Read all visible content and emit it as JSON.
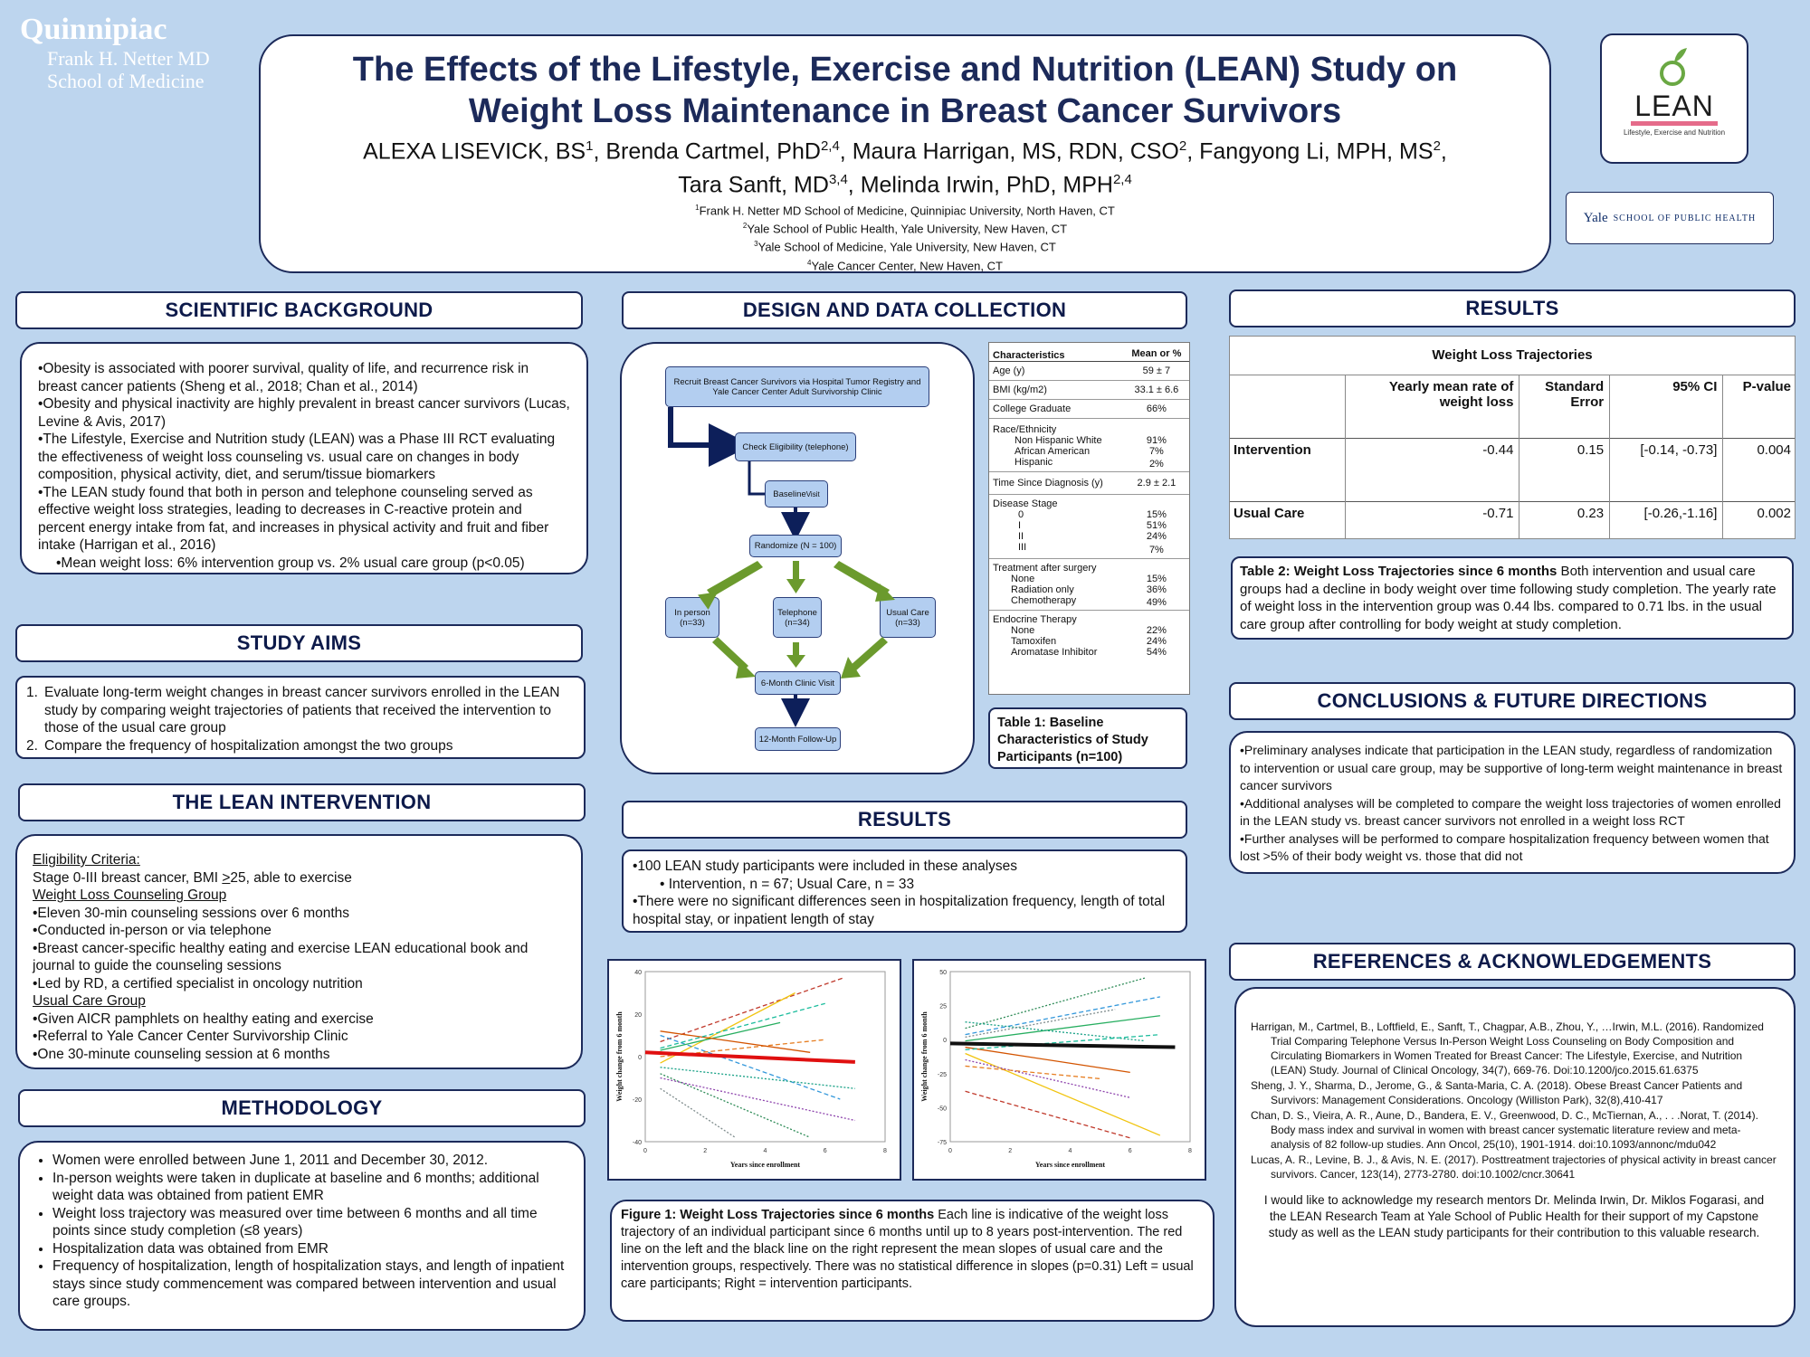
{
  "logos": {
    "quinnipiac": "Quinnipiac",
    "netter_line1": "Frank H. Netter MD",
    "netter_line2": "School of Medicine",
    "lean": "LEAN",
    "lean_tag": "Lifestyle, Exercise and Nutrition",
    "yale_word": "Yale",
    "yale_school": "SCHOOL OF PUBLIC HEALTH"
  },
  "header": {
    "title_line1": "The Effects of the Lifestyle, Exercise and Nutrition (LEAN) Study on",
    "title_line2": "Weight Loss Maintenance in Breast Cancer Survivors",
    "author1": "ALEXA LISEVICK, BS",
    "author1_sup": "1",
    "author2": ", Brenda Cartmel, PhD",
    "author2_sup": "2,4",
    "author3": ", Maura Harrigan, MS, RDN, CSO",
    "author3_sup": "2",
    "author4": ", Fangyong Li, MPH, MS",
    "author4_sup": "2",
    "author4_end": ",",
    "author5": "Tara Sanft, MD",
    "author5_sup": "3,4",
    "author6": ", Melinda Irwin, PhD, MPH",
    "author6_sup": "2,4",
    "aff1_sup": "1",
    "aff1": "Frank H. Netter MD School of Medicine, Quinnipiac University, North Haven, CT",
    "aff2_sup": "2",
    "aff2": "Yale School of Public Health, Yale University, New Haven, CT",
    "aff3_sup": "3",
    "aff3": "Yale School of Medicine, Yale University, New Haven, CT",
    "aff4_sup": "4",
    "aff4": "Yale Cancer Center, New Haven, CT"
  },
  "background": {
    "heading": "SCIENTIFIC BACKGROUND",
    "b1": "•Obesity is associated with poorer survival, quality of life, and recurrence risk in breast cancer patients (Sheng et al., 2018; Chan et al., 2014)",
    "b2": "•Obesity and physical inactivity are highly prevalent in breast cancer survivors (Lucas, Levine & Avis, 2017)",
    "b3": "•The Lifestyle, Exercise and Nutrition study (LEAN) was a Phase III RCT evaluating the effectiveness of weight loss counseling vs. usual care on changes in body composition, physical activity, diet, and serum/tissue biomarkers",
    "b4": "•The LEAN study found that both in person and telephone counseling served as effective weight loss strategies, leading to decreases in C-reactive protein and percent energy intake from fat, and increases in physical activity and fruit and fiber intake (Harrigan et al., 2016)",
    "b5": "•Mean weight loss: 6% intervention group vs. 2% usual care group (p<0.05)"
  },
  "aims": {
    "heading": "STUDY AIMS",
    "a1_num": "1.",
    "a1": "Evaluate long-term weight changes in breast cancer survivors enrolled in the LEAN study by comparing weight trajectories of patients that received the intervention to those of the usual care group",
    "a2_num": "2.",
    "a2": "Compare the frequency of hospitalization amongst the two groups"
  },
  "intervention": {
    "heading": "THE LEAN INTERVENTION",
    "elig_head": "Eligibility Criteria:",
    "elig_a": "Stage 0-III breast cancer, BMI ",
    "elig_b": ">",
    "elig_c": "25, able to exercise",
    "wl_head": "Weight Loss Counseling Group",
    "wl1": "•Eleven 30-min counseling sessions over 6 months",
    "wl2": "•Conducted in-person or via telephone",
    "wl3": "•Breast cancer-specific healthy eating and exercise LEAN educational book and journal to guide the counseling sessions",
    "wl4": "•Led by RD, a certified specialist in oncology nutrition",
    "uc_head": "Usual Care Group",
    "uc1": "•Given AICR pamphlets on healthy eating and exercise",
    "uc2": "•Referral to Yale Cancer Center Survivorship Clinic",
    "uc3": "•One 30-minute counseling session at 6 months"
  },
  "methodology": {
    "heading": "METHODOLOGY",
    "m1": "Women were enrolled between June 1, 2011 and December 30, 2012.",
    "m2": "In-person weights were taken in duplicate at baseline and 6 months; additional weight data was obtained from patient EMR",
    "m3": "Weight loss trajectory was measured over time between 6 months and all time points since study completion (≤8 years)",
    "m4": "Hospitalization data was obtained from EMR",
    "m5": "Frequency of hospitalization, length of hospitalization stays, and length of inpatient stays since study commencement was compared between intervention and usual care groups."
  },
  "design": {
    "heading": "DESIGN AND DATA COLLECTION",
    "fc_recruit": "Recruit Breast Cancer Survivors via Hospital Tumor Registry and Yale Cancer Center Adult Survivorship Clinic",
    "fc_elig": "Check Eligibility (telephone)",
    "fc_base_a": "Baseline ",
    "fc_base_b": "Visit",
    "fc_rand": "Randomize  (N = 100)",
    "fc_inperson": "In person",
    "fc_inperson_n": "(n=33)",
    "fc_tel": "Telephone",
    "fc_tel_n": "(n=34)",
    "fc_uc": "Usual Care",
    "fc_uc_n": "(n=33)",
    "fc_6m": "6-Month Clinic Visit",
    "fc_12m": "12-Month Follow-Up"
  },
  "table1": {
    "col1": "Characteristics",
    "col2": "Mean or %",
    "age": "Age (y)",
    "age_v": "59 ± 7",
    "bmi": "BMI (kg/m2)",
    "bmi_v": "33.1 ± 6.6",
    "college": "College Graduate",
    "college_v": "66%",
    "race": "Race/Ethnicity",
    "race1": "Non Hispanic White",
    "race1_v": "91%",
    "race2": "African American",
    "race2_v": "7%",
    "race3": "Hispanic",
    "race3_v": "2%",
    "tsd": "Time Since Diagnosis (y)",
    "tsd_v": "2.9 ± 2.1",
    "stage": "Disease Stage",
    "s0": "0",
    "s0_v": "15%",
    "s1": "I",
    "s1_v": "51%",
    "s2": "II",
    "s2_v": "24%",
    "s3": "III",
    "s3_v": "7%",
    "tx": "Treatment after surgery",
    "tx1": "None",
    "tx1_v": "15%",
    "tx2": "Radiation only",
    "tx2_v": "36%",
    "tx3": "Chemotherapy",
    "tx3_v": "49%",
    "endo": "Endocrine Therapy",
    "e1": "None",
    "e1_v": "22%",
    "e2": "Tamoxifen",
    "e2_v": "24%",
    "e3": "Aromatase Inhibitor",
    "e3_v": "54%",
    "caption": "Table 1: Baseline Characteristics of Study Participants (n=100)"
  },
  "results_mid": {
    "heading": "RESULTS",
    "r1": "•100 LEAN study participants were included in these analyses",
    "r2": "• Intervention, n = 67; Usual Care, n = 33",
    "r3": "•There were no significant differences seen in hospitalization frequency, length of total hospital stay, or inpatient length of stay"
  },
  "figure1": {
    "caption_bold": "Figure 1: Weight Loss Trajectories since 6 months",
    "caption_text": " Each line is indicative of the weight loss trajectory of an individual participant since 6 months until up to 8 years post-intervention. The red line on the left and the black line on the right represent the mean slopes of usual care and the intervention groups, respectively. There was no statistical difference in slopes (p=0.31) Left = usual care participants; Right = intervention participants."
  },
  "chart_data": [
    {
      "type": "line",
      "xlabel": "Years since enrollment",
      "ylabel": "Weight change from 6 month",
      "xlim": [
        0,
        8
      ],
      "ylim": [
        -40,
        40
      ],
      "xticks": [
        "0",
        "2",
        "4",
        "6",
        "8"
      ],
      "yticks": [
        "40",
        "20",
        "0",
        "-20",
        "-40"
      ],
      "mean_color": "#e01010",
      "series": [
        {
          "x": [
            0,
            7
          ],
          "y": [
            2.0,
            -2.5
          ]
        },
        {
          "x": [
            0.5,
            6.6
          ],
          "y": [
            7,
            37
          ]
        },
        {
          "x": [
            0.5,
            5.5
          ],
          "y": [
            -8,
            -38
          ]
        },
        {
          "x": [
            0.5,
            5
          ],
          "y": [
            -3,
            30
          ]
        },
        {
          "x": [
            0.5,
            6.5
          ],
          "y": [
            10,
            -20
          ]
        },
        {
          "x": [
            0.5,
            7
          ],
          "y": [
            -10,
            -30
          ]
        },
        {
          "x": [
            0.5,
            4.5
          ],
          "y": [
            3,
            16
          ]
        },
        {
          "x": [
            0.5,
            6
          ],
          "y": [
            0,
            8
          ]
        },
        {
          "x": [
            0.5,
            7
          ],
          "y": [
            -5,
            -15
          ]
        },
        {
          "x": [
            0.5,
            5.5
          ],
          "y": [
            12,
            2
          ]
        },
        {
          "x": [
            0.5,
            6
          ],
          "y": [
            4,
            25
          ]
        },
        {
          "x": [
            0.5,
            3
          ],
          "y": [
            -15,
            -38
          ]
        }
      ]
    },
    {
      "type": "line",
      "xlabel": "Years since enrollment",
      "ylabel": "Weight change from 6 month",
      "xlim": [
        0,
        8
      ],
      "ylim": [
        -75,
        60
      ],
      "xticks": [
        "0",
        "2",
        "4",
        "6",
        "8"
      ],
      "yticks": [
        "50",
        "25",
        "0",
        "-25",
        "-50",
        "-75"
      ],
      "mean_color": "#111111",
      "series": [
        {
          "x": [
            0,
            7.5
          ],
          "y": [
            3,
            0
          ]
        },
        {
          "x": [
            0.5,
            6
          ],
          "y": [
            -35,
            -72
          ]
        },
        {
          "x": [
            0.5,
            6.5
          ],
          "y": [
            15,
            55
          ]
        },
        {
          "x": [
            0.5,
            7
          ],
          "y": [
            -5,
            -70
          ]
        },
        {
          "x": [
            0.5,
            7
          ],
          "y": [
            10,
            40
          ]
        },
        {
          "x": [
            0.5,
            6
          ],
          "y": [
            -10,
            -40
          ]
        },
        {
          "x": [
            0.5,
            7
          ],
          "y": [
            5,
            25
          ]
        },
        {
          "x": [
            0.5,
            5
          ],
          "y": [
            -15,
            -25
          ]
        },
        {
          "x": [
            0.5,
            6.5
          ],
          "y": [
            20,
            5
          ]
        },
        {
          "x": [
            0.5,
            6
          ],
          "y": [
            0,
            -20
          ]
        },
        {
          "x": [
            0.5,
            7
          ],
          "y": [
            -2,
            10
          ]
        },
        {
          "x": [
            0.5,
            5.5
          ],
          "y": [
            8,
            30
          ]
        }
      ]
    }
  ],
  "results_right": {
    "heading": "RESULTS",
    "table_title": "Weight Loss Trajectories",
    "h_rate_1": "Yearly mean rate of",
    "h_rate_2": "weight loss",
    "h_se_1": "Standard",
    "h_se_2": "Error",
    "h_ci": "95% CI",
    "h_p": "P-value",
    "row1": "Intervention",
    "row1_rate": "-0.44",
    "row1_se": "0.15",
    "row1_ci": "[-0.14, -0.73]",
    "row1_p": "0.004",
    "row2": "Usual Care",
    "row2_rate": "-0.71",
    "row2_se": "0.23",
    "row2_ci": "[-0.26,-1.16]",
    "row2_p": "0.002",
    "caption_bold": "Table 2: Weight Loss Trajectories since 6 months",
    "caption_text": " Both intervention and usual care groups had a decline in body weight over time following study completion. The yearly rate of weight loss in the intervention group was 0.44 lbs. compared to 0.71 lbs. in the usual care group after controlling for body weight at study completion."
  },
  "conclusions": {
    "heading": "CONCLUSIONS & FUTURE DIRECTIONS",
    "c1": "•Preliminary analyses indicate that participation in the LEAN study, regardless of randomization to intervention or usual care group, may be supportive of long-term weight maintenance in breast cancer survivors",
    "c2": "•Additional analyses will be completed to compare the weight loss trajectories of women enrolled in the LEAN study vs. breast cancer survivors not enrolled in a weight loss RCT",
    "c3": "•Further analyses will be performed to compare hospitalization frequency between women that lost >5% of their body weight vs. those that did not"
  },
  "references": {
    "heading": "REFERENCES & ACKNOWLEDGEMENTS",
    "ref1": "Harrigan, M., Cartmel, B., Loftfield, E., Sanft, T., Chagpar, A.B., Zhou, Y., …Irwin, M.L. (2016). Randomized Trial Comparing Telephone Versus In-Person Weight Loss Counseling on  Body Composition and Circulating Biomarkers in Women Treated for Breast  Cancer: The Lifestyle, Exercise, and Nutrition (LEAN) Study. Journal of Clinical Oncology, 34(7), 669-76. Doi:10.1200/jco.2015.61.6375",
    "ref2": "Sheng, J. Y., Sharma, D., Jerome, G., & Santa-Maria, C. A. (2018). Obese Breast Cancer Patients and Survivors: Management Considerations. Oncology (Williston Park), 32(8),410-417",
    "ref3": "Chan, D. S., Vieira, A. R., Aune, D., Bandera, E. V., Greenwood, D. C., McTiernan, A., . . .Norat, T. (2014). Body mass index and survival in women with breast cancer systematic literature review and meta-analysis of 82 follow-up studies. Ann Oncol, 25(10), 1901-1914. doi:10.1093/annonc/mdu042",
    "ref4": "Lucas, A. R., Levine, B. J., & Avis, N. E. (2017). Posttreatment trajectories of physical activity in breast cancer survivors. Cancer, 123(14), 2773-2780. doi:10.1002/cncr.30641",
    "ack": "I would like to acknowledge my research mentors Dr. Melinda Irwin, Dr. Miklos Fogarasi, and the LEAN Research Team at Yale School of Public Health for their support of my Capstone study as well as the LEAN study participants for their contribution to this valuable research."
  }
}
